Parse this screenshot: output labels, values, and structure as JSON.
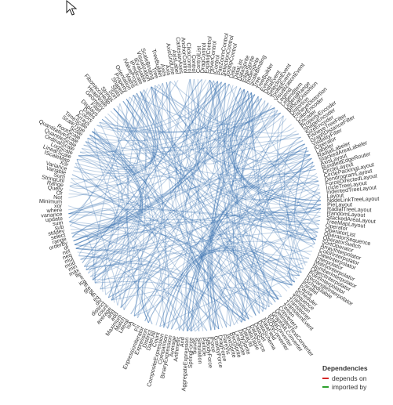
{
  "legend": {
    "title": "Dependencies",
    "items": [
      {
        "label": "depends on",
        "color": "#d62728"
      },
      {
        "label": "imported by",
        "color": "#2ca02c"
      }
    ]
  },
  "edge_color": "#3b73b0",
  "cursor_icon": "mouse-pointer-icon",
  "nodes": [
    "Visualization",
    "ScaleBinding",
    "Tree",
    "TreeBuilder",
    "Axes",
    "Axis",
    "AxisGridLine",
    "AxisLabel",
    "CartesianAxes",
    "AnchorControl",
    "ClickControl",
    "Control",
    "ControlList",
    "DragControl",
    "ExpandControl",
    "HoverControl",
    "IControl",
    "PanZoomControl",
    "SelectionControl",
    "TooltipControl",
    "Data",
    "DataList",
    "DataSprite",
    "EdgeSprite",
    "NodeSprite",
    "ScaleBinding",
    "Tree",
    "TreeBuilder",
    "Events",
    "DataEvent",
    "SelectionEvent",
    "TooltipEvent",
    "VisualizationEvent",
    "Legend",
    "LegendItem",
    "LegendRange",
    "BifocalDistortion",
    "Distortion",
    "FisheyeDistortion",
    "ColorEncoder",
    "Encoder",
    "PropertyEncoder",
    "ShapeEncoder",
    "SizeEncoder",
    "FisheyeTreeFilter",
    "GraphDistanceFilter",
    "VisibilityFilter",
    "IOperator",
    "Labeler",
    "RadialLabeler",
    "StackedAreaLabeler",
    "AxisLayout",
    "BundledEdgeRouter",
    "CircleLayout",
    "CirclePackingLayout",
    "DendrogramLayout",
    "ForceDirectedLayout",
    "IcicleTreeLayout",
    "IndentedTreeLayout",
    "Layout",
    "NodeLinkTreeLayout",
    "PieLayout",
    "RadialTreeLayout",
    "RandomLayout",
    "StackedAreaLayout",
    "TreeMapLayout",
    "Operator",
    "OperatorList",
    "OperatorSequence",
    "OperatorSwitch",
    "SortOperator",
    "ArrayInterpolator",
    "ColorInterpolator",
    "DateInterpolator",
    "Interpolator",
    "MatrixInterpolator",
    "NumberInterpolator",
    "ObjectInterpolator",
    "PointInterpolator",
    "RectangleInterpolator",
    "ISchedulable",
    "Parallel",
    "Pause",
    "Scheduler",
    "Sequence",
    "Transition",
    "Transitioner",
    "TransitionEvent",
    "Tween",
    "Converters",
    "DelimitedTextConverter",
    "GraphMLConverter",
    "IDataConverter",
    "JSONConverter",
    "DataField",
    "DataSchema",
    "DataSet",
    "DataSource",
    "DataTable",
    "DataUtil",
    "DirtySprite",
    "LineSprite",
    "RectSprite",
    "TextSprite",
    "FlareVis",
    "DragForce",
    "GravityForce",
    "IForce",
    "NBodyForce",
    "Particle",
    "Simulation",
    "Spring",
    "SpringForce",
    "AggregateExpression",
    "And",
    "Arithmetic",
    "Average",
    "BinaryExpression",
    "Comparison",
    "CompositeExpression",
    "Count",
    "DateUtil",
    "Distinct",
    "Expression",
    "ExpressionIterator",
    "Fn",
    "If",
    "IsA",
    "Literal",
    "Match",
    "Maximum",
    "add",
    "and",
    "average",
    "count",
    "distinct",
    "div",
    "eq",
    "fn",
    "gt",
    "gte",
    "iff",
    "isa",
    "lt",
    "lte",
    "max",
    "min",
    "mod",
    "mul",
    "neq",
    "not",
    "or",
    "orderby",
    "range",
    "select",
    "stddev",
    "sub",
    "sum",
    "update",
    "variance",
    "where",
    "xor",
    "Minimum",
    "Not",
    "Or",
    "Query",
    "Range",
    "StringUtil",
    "Sum",
    "Variable",
    "Variance",
    "Xor",
    "IScaleMap",
    "LinearScale",
    "LogScale",
    "OrdinalScale",
    "QuantileScale",
    "QuantitativeScale",
    "RootScale",
    "Scale",
    "ScaleType",
    "TimeScale",
    "Arrays",
    "Colors",
    "Dates",
    "Displays",
    "Filter",
    "Geometry",
    "HeapNode",
    "FibonacciHeap",
    "Strings",
    "Sort",
    "Stats",
    "Shapes",
    "Property",
    "Orientation",
    "Maths",
    "IValueProxy",
    "IPredicate",
    "IEvaluable"
  ]
}
